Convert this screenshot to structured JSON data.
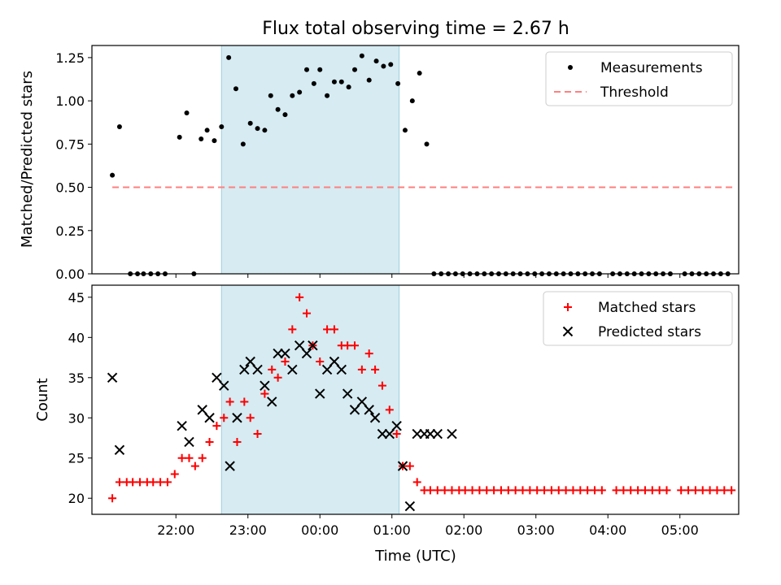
{
  "chart_data": [
    {
      "type": "scatter",
      "title": "Flux total observing time = 2.67 h",
      "ylabel": "Matched/Predicted stars",
      "xlabel": "",
      "ylim": [
        0,
        1.32
      ],
      "x_tick_labels": [
        "22:00",
        "23:00",
        "00:00",
        "01:00",
        "02:00",
        "03:00",
        "04:00",
        "05:00"
      ],
      "y_ticks": [
        "0.00",
        "0.25",
        "0.50",
        "0.75",
        "1.00",
        "1.25"
      ],
      "legend_position": "top-right",
      "highlight_span_minutes": [
        -82,
        66
      ],
      "series": [
        {
          "name": "Measurements",
          "marker": "dot",
          "color": "#000000",
          "x": [
            -173,
            -167,
            -158,
            -152,
            -147,
            -141,
            -135,
            -129,
            -117,
            -111,
            -105,
            -99,
            -94,
            -88,
            -82,
            -76,
            -70,
            -64,
            -58,
            -52,
            -46,
            -41,
            -35,
            -29,
            -23,
            -17,
            -11,
            -5,
            0,
            6,
            12,
            18,
            24,
            29,
            35,
            41,
            47,
            53,
            59,
            65,
            71,
            77,
            83,
            89,
            95,
            101,
            107,
            113,
            119,
            125,
            131,
            137,
            143,
            149,
            155,
            161,
            167,
            173,
            179,
            185,
            191,
            197,
            203,
            209,
            215,
            221,
            227,
            233,
            244,
            250,
            256,
            262,
            268,
            274,
            280,
            286,
            292,
            304,
            310,
            316,
            322,
            328,
            334,
            340
          ],
          "y": [
            0.57,
            0.85,
            0,
            0,
            0,
            0,
            0,
            0,
            0.79,
            0.93,
            0,
            0.78,
            0.83,
            0.77,
            0.85,
            1.25,
            1.07,
            0.75,
            0.87,
            0.84,
            0.83,
            1.03,
            0.95,
            0.92,
            1.03,
            1.05,
            1.18,
            1.1,
            1.18,
            1.03,
            1.11,
            1.11,
            1.08,
            1.18,
            1.26,
            1.12,
            1.23,
            1.2,
            1.21,
            1.1,
            0.83,
            1.0,
            1.16,
            0.75,
            0,
            0,
            0,
            0,
            0,
            0,
            0,
            0,
            0,
            0,
            0,
            0,
            0,
            0,
            0,
            0,
            0,
            0,
            0,
            0,
            0,
            0,
            0,
            0,
            0,
            0,
            0,
            0,
            0,
            0,
            0,
            0,
            0,
            0,
            0,
            0,
            0,
            0,
            0,
            0
          ]
        },
        {
          "name": "Threshold",
          "marker": "dashed-line",
          "color": "#ff7f7f",
          "x": [
            -173,
            345
          ],
          "y": [
            0.5,
            0.5
          ]
        }
      ]
    },
    {
      "type": "scatter",
      "title": "",
      "ylabel": "Count",
      "xlabel": "Time (UTC)",
      "ylim": [
        18,
        46.5
      ],
      "x_tick_labels": [
        "22:00",
        "23:00",
        "00:00",
        "01:00",
        "02:00",
        "03:00",
        "04:00",
        "05:00"
      ],
      "y_ticks": [
        "20",
        "25",
        "30",
        "35",
        "40",
        "45"
      ],
      "legend_position": "top-right",
      "highlight_span_minutes": [
        -82,
        66
      ],
      "series": [
        {
          "name": "Matched stars",
          "marker": "plus",
          "color": "#ff0000",
          "x": [
            -173,
            -167,
            -161,
            -156,
            -150,
            -144,
            -139,
            -133,
            -127,
            -121,
            -115,
            -109,
            -104,
            -98,
            -92,
            -86,
            -80,
            -75,
            -69,
            -63,
            -58,
            -52,
            -46,
            -40,
            -35,
            -29,
            -23,
            -17,
            -11,
            -6,
            0,
            6,
            12,
            18,
            23,
            29,
            35,
            41,
            46,
            52,
            58,
            64,
            69,
            75,
            81,
            87,
            92,
            98,
            104,
            110,
            116,
            121,
            127,
            133,
            139,
            145,
            151,
            157,
            163,
            169,
            175,
            181,
            187,
            193,
            199,
            205,
            211,
            217,
            223,
            229,
            235,
            247,
            253,
            259,
            265,
            271,
            277,
            283,
            289,
            301,
            307,
            313,
            319,
            325,
            331,
            337,
            343
          ],
          "y": [
            20,
            22,
            22,
            22,
            22,
            22,
            22,
            22,
            22,
            23,
            25,
            25,
            24,
            25,
            27,
            29,
            30,
            32,
            27,
            32,
            30,
            28,
            33,
            36,
            35,
            37,
            41,
            45,
            43,
            39,
            37,
            41,
            41,
            39,
            39,
            39,
            36,
            38,
            36,
            34,
            31,
            28,
            24,
            24,
            22,
            21,
            21,
            21,
            21,
            21,
            21,
            21,
            21,
            21,
            21,
            21,
            21,
            21,
            21,
            21,
            21,
            21,
            21,
            21,
            21,
            21,
            21,
            21,
            21,
            21,
            21,
            21,
            21,
            21,
            21,
            21,
            21,
            21,
            21,
            21,
            21,
            21,
            21,
            21,
            21,
            21,
            21
          ]
        },
        {
          "name": "Predicted stars",
          "marker": "x",
          "color": "#000000",
          "x": [
            -173,
            -167,
            -115,
            -109,
            -98,
            -92,
            -86,
            -80,
            -75,
            -69,
            -63,
            -58,
            -52,
            -46,
            -40,
            -35,
            -29,
            -23,
            -17,
            -11,
            -6,
            0,
            6,
            12,
            18,
            23,
            29,
            35,
            41,
            46,
            52,
            58,
            64,
            69,
            75,
            81,
            87,
            92,
            98,
            110
          ],
          "y": [
            35,
            26,
            29,
            27,
            31,
            30,
            35,
            34,
            24,
            30,
            36,
            37,
            36,
            34,
            32,
            38,
            38,
            36,
            39,
            38,
            39,
            33,
            36,
            37,
            36,
            33,
            31,
            32,
            31,
            30,
            28,
            28,
            29,
            24,
            19,
            28,
            28,
            28,
            28,
            28
          ]
        }
      ]
    }
  ]
}
